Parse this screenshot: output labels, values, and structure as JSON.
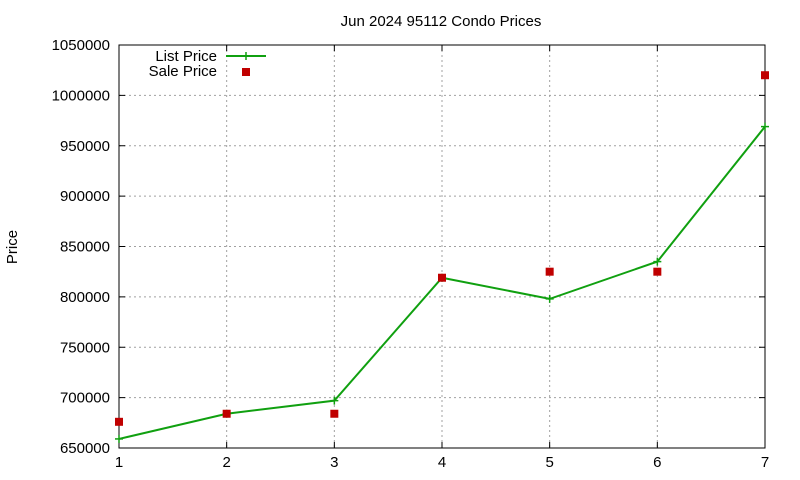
{
  "chart_data": {
    "type": "line",
    "title": "Jun 2024 95112 Condo Prices",
    "xlabel": "",
    "ylabel": "Price",
    "x": [
      1,
      2,
      3,
      4,
      5,
      6,
      7
    ],
    "xlim": [
      1,
      7
    ],
    "ylim": [
      650000,
      1050000
    ],
    "x_ticks": [
      "1",
      "2",
      "3",
      "4",
      "5",
      "6",
      "7"
    ],
    "y_ticks": [
      "650000",
      "700000",
      "750000",
      "800000",
      "850000",
      "900000",
      "950000",
      "1000000",
      "1050000"
    ],
    "grid": true,
    "legend_position": "top-left",
    "series": [
      {
        "name": "List Price",
        "style": "line-with-plus-markers",
        "color": "#10a010",
        "values": [
          659000,
          684000,
          697000,
          819000,
          798000,
          835000,
          969000
        ]
      },
      {
        "name": "Sale Price",
        "style": "square-markers",
        "color": "#c00000",
        "values": [
          676000,
          684000,
          684000,
          819000,
          825000,
          825000,
          1020000
        ]
      }
    ]
  }
}
